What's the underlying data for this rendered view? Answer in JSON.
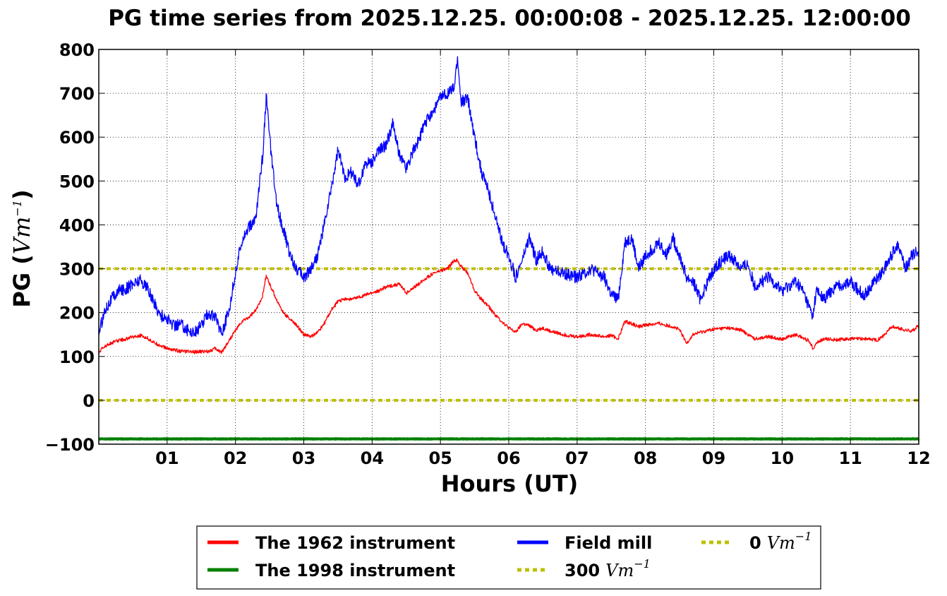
{
  "chart_data": {
    "type": "line",
    "title": "PG time series from 2025.12.25. 00:00:08 - 2025.12.25. 12:00:00",
    "xlabel": "Hours (UT)",
    "ylabel": {
      "prefix": "PG (",
      "unit": "Vm",
      "exp": "−1",
      "suffix": ")"
    },
    "xlim": [
      0,
      12
    ],
    "ylim": [
      -100,
      800
    ],
    "grid": true,
    "legend_position": "bottom",
    "x_ticks": [
      {
        "value": 1,
        "label": "01"
      },
      {
        "value": 2,
        "label": "02"
      },
      {
        "value": 3,
        "label": "03"
      },
      {
        "value": 4,
        "label": "04"
      },
      {
        "value": 5,
        "label": "05"
      },
      {
        "value": 6,
        "label": "06"
      },
      {
        "value": 7,
        "label": "07"
      },
      {
        "value": 8,
        "label": "08"
      },
      {
        "value": 9,
        "label": "09"
      },
      {
        "value": 10,
        "label": "10"
      },
      {
        "value": 11,
        "label": "11"
      },
      {
        "value": 12,
        "label": "12"
      }
    ],
    "y_ticks": [
      {
        "value": -100,
        "label": "−100"
      },
      {
        "value": 0,
        "label": "0"
      },
      {
        "value": 100,
        "label": "100"
      },
      {
        "value": 200,
        "label": "200"
      },
      {
        "value": 300,
        "label": "300"
      },
      {
        "value": 400,
        "label": "400"
      },
      {
        "value": 500,
        "label": "500"
      },
      {
        "value": 600,
        "label": "600"
      },
      {
        "value": 700,
        "label": "700"
      },
      {
        "value": 800,
        "label": "800"
      }
    ],
    "series": [
      {
        "name": "The 1962 instrument",
        "color": "#ff0000",
        "x": [
          0.0,
          0.1,
          0.25,
          0.4,
          0.5,
          0.6,
          0.7,
          0.8,
          0.9,
          1.0,
          1.2,
          1.4,
          1.6,
          1.7,
          1.8,
          1.9,
          2.0,
          2.1,
          2.2,
          2.3,
          2.4,
          2.45,
          2.5,
          2.6,
          2.7,
          2.8,
          2.9,
          3.0,
          3.1,
          3.2,
          3.3,
          3.4,
          3.5,
          3.6,
          3.7,
          3.8,
          3.9,
          4.0,
          4.1,
          4.2,
          4.3,
          4.4,
          4.5,
          4.6,
          4.7,
          4.8,
          4.9,
          5.0,
          5.1,
          5.2,
          5.25,
          5.3,
          5.4,
          5.5,
          5.6,
          5.7,
          5.8,
          5.9,
          6.0,
          6.1,
          6.2,
          6.3,
          6.4,
          6.5,
          6.6,
          6.8,
          7.0,
          7.2,
          7.4,
          7.5,
          7.6,
          7.7,
          7.8,
          7.9,
          8.0,
          8.2,
          8.4,
          8.5,
          8.6,
          8.7,
          8.8,
          9.0,
          9.2,
          9.4,
          9.5,
          9.6,
          9.8,
          10.0,
          10.2,
          10.4,
          10.45,
          10.5,
          10.6,
          10.8,
          11.0,
          11.2,
          11.4,
          11.5,
          11.6,
          11.8,
          11.9,
          12.0
        ],
        "y": [
          110,
          125,
          135,
          140,
          145,
          148,
          143,
          132,
          125,
          118,
          112,
          110,
          112,
          118,
          110,
          135,
          160,
          180,
          190,
          205,
          240,
          285,
          265,
          230,
          200,
          185,
          170,
          150,
          145,
          155,
          175,
          205,
          225,
          232,
          230,
          235,
          240,
          245,
          250,
          258,
          262,
          265,
          245,
          255,
          268,
          280,
          290,
          295,
          300,
          318,
          320,
          305,
          290,
          250,
          230,
          215,
          195,
          180,
          165,
          155,
          175,
          170,
          160,
          165,
          158,
          150,
          145,
          150,
          145,
          148,
          140,
          180,
          175,
          168,
          172,
          175,
          168,
          160,
          130,
          150,
          155,
          162,
          165,
          160,
          150,
          140,
          145,
          140,
          150,
          135,
          118,
          130,
          140,
          138,
          140,
          140,
          138,
          150,
          168,
          160,
          158,
          170
        ]
      },
      {
        "name": "Field mill",
        "color": "#0000ff",
        "x": [
          0.0,
          0.1,
          0.2,
          0.3,
          0.4,
          0.5,
          0.6,
          0.7,
          0.8,
          0.9,
          1.0,
          1.1,
          1.2,
          1.3,
          1.4,
          1.5,
          1.6,
          1.7,
          1.8,
          1.9,
          2.0,
          2.1,
          2.2,
          2.25,
          2.3,
          2.4,
          2.45,
          2.5,
          2.55,
          2.6,
          2.7,
          2.8,
          2.9,
          3.0,
          3.1,
          3.2,
          3.3,
          3.4,
          3.5,
          3.6,
          3.7,
          3.8,
          3.9,
          4.0,
          4.1,
          4.2,
          4.3,
          4.4,
          4.5,
          4.6,
          4.7,
          4.8,
          4.9,
          5.0,
          5.1,
          5.2,
          5.25,
          5.3,
          5.4,
          5.5,
          5.6,
          5.7,
          5.8,
          5.9,
          6.0,
          6.1,
          6.2,
          6.3,
          6.4,
          6.5,
          6.6,
          6.8,
          7.0,
          7.2,
          7.4,
          7.5,
          7.6,
          7.7,
          7.8,
          7.9,
          8.0,
          8.2,
          8.3,
          8.4,
          8.5,
          8.6,
          8.7,
          8.8,
          9.0,
          9.2,
          9.3,
          9.4,
          9.5,
          9.6,
          9.8,
          10.0,
          10.2,
          10.3,
          10.4,
          10.45,
          10.5,
          10.6,
          10.8,
          11.0,
          11.2,
          11.3,
          11.4,
          11.5,
          11.6,
          11.7,
          11.8,
          11.9,
          12.0
        ],
        "y": [
          155,
          210,
          235,
          250,
          255,
          265,
          275,
          260,
          225,
          195,
          185,
          170,
          175,
          160,
          155,
          170,
          200,
          190,
          155,
          200,
          290,
          370,
          395,
          400,
          420,
          560,
          695,
          600,
          520,
          450,
          390,
          330,
          300,
          280,
          300,
          330,
          400,
          480,
          570,
          510,
          520,
          490,
          540,
          545,
          570,
          580,
          630,
          560,
          530,
          570,
          600,
          640,
          660,
          690,
          700,
          710,
          780,
          680,
          690,
          600,
          520,
          480,
          420,
          360,
          330,
          280,
          320,
          370,
          320,
          340,
          300,
          290,
          280,
          300,
          280,
          240,
          230,
          360,
          370,
          300,
          330,
          360,
          330,
          370,
          330,
          280,
          270,
          230,
          300,
          330,
          320,
          300,
          310,
          260,
          280,
          250,
          270,
          250,
          210,
          190,
          250,
          230,
          260,
          270,
          240,
          260,
          280,
          300,
          330,
          360,
          300,
          330,
          340
        ]
      },
      {
        "name": "The 1998 instrument",
        "color": "#008000",
        "x": [
          0,
          12
        ],
        "y": [
          -88,
          -88
        ]
      }
    ],
    "reference_lines": [
      {
        "name": "300",
        "unit": "Vm",
        "exp": "−1",
        "value": 300,
        "color": "#bfbf00"
      },
      {
        "name": "0",
        "unit": "Vm",
        "exp": "−1",
        "value": 0,
        "color": "#bfbf00"
      }
    ],
    "legend": [
      {
        "label": "The 1962 instrument",
        "color": "#ff0000",
        "style": "solid"
      },
      {
        "label": "The 1998 instrument",
        "color": "#008000",
        "style": "solid"
      },
      {
        "label": "Field mill",
        "color": "#0000ff",
        "style": "solid"
      },
      {
        "label": "300",
        "unit": "Vm",
        "exp": "−1",
        "color": "#bfbf00",
        "style": "dotted"
      },
      {
        "label": "0",
        "unit": "Vm",
        "exp": "−1",
        "color": "#bfbf00",
        "style": "dotted"
      }
    ]
  }
}
